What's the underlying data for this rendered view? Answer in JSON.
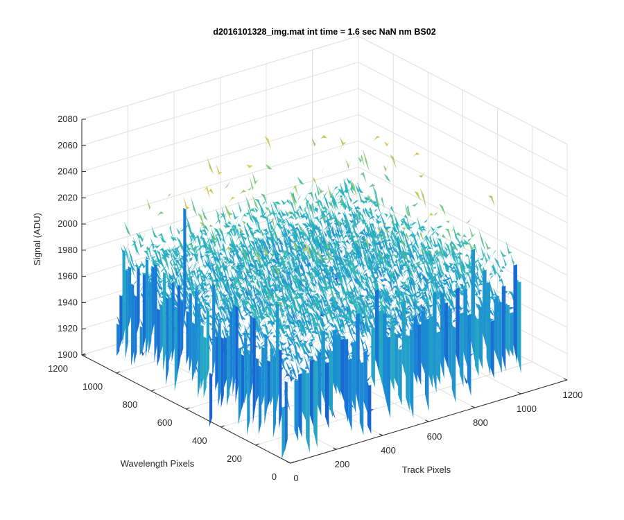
{
  "chart_data": {
    "type": "surface",
    "title": "d2016101328_img.mat int time = 1.6 sec  NaN nm BS02",
    "xlabel": "Track Pixels",
    "ylabel": "Wavelength Pixels",
    "zlabel": "Signal (ADU)",
    "xlim": [
      0,
      1200
    ],
    "ylim": [
      0,
      1200
    ],
    "zlim": [
      1900,
      2080
    ],
    "x_ticks": [
      "0",
      "200",
      "400",
      "600",
      "800",
      "1000",
      "1200"
    ],
    "y_ticks": [
      "0",
      "200",
      "400",
      "600",
      "800",
      "1000",
      "1200"
    ],
    "z_ticks": [
      "1900",
      "1920",
      "1940",
      "1960",
      "1980",
      "2000",
      "2020",
      "2040",
      "2060",
      "2080"
    ],
    "grid": true,
    "colormap": "parula",
    "surface_extent": {
      "x": [
        0,
        1000
      ],
      "y": [
        0,
        1000
      ]
    },
    "signal_summary": {
      "typical_min": 1910,
      "typical_mean": 1980,
      "typical_max": 2060
    }
  }
}
